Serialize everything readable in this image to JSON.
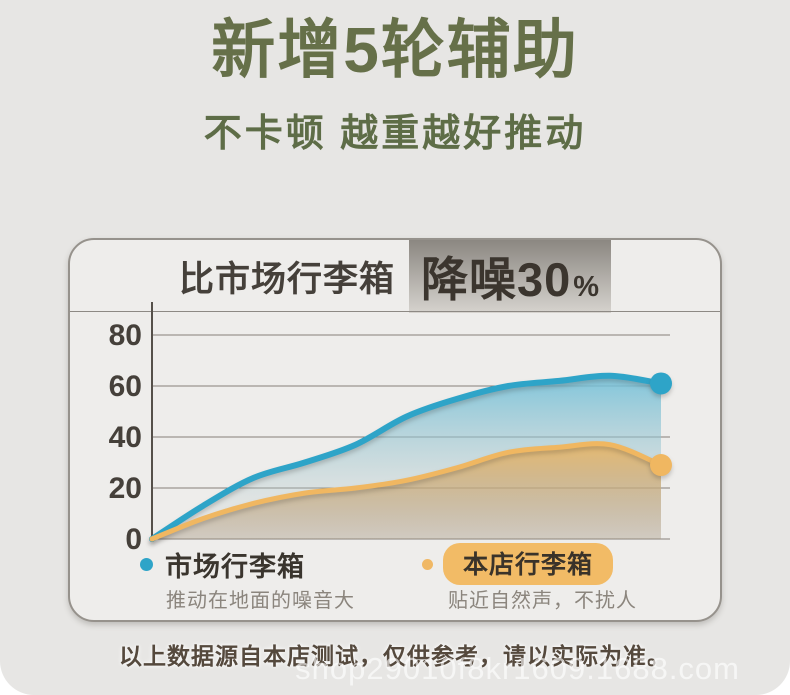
{
  "palette": {
    "page_bg": "#e7e6e4",
    "title_green": "#667049",
    "text_dark": "#45403a",
    "grid": "#6b665f",
    "caption_gray": "#8b857d",
    "blue": "#2ea4c8",
    "orange": "#f0b761",
    "badge_gradient_top": "#8b8781",
    "badge_gradient_bottom": "#d6d3ce"
  },
  "header": {
    "title": "新增5轮辅助",
    "subtitle": "不卡顿 越重越好推动"
  },
  "chart_card": {
    "heading_prefix": "比市场行李箱",
    "badge_value": "降噪30",
    "badge_unit": "%"
  },
  "chart_data": {
    "type": "area",
    "title": "比市场行李箱 降噪30%",
    "xlabel": "",
    "ylabel": "",
    "x": [
      0,
      1,
      2,
      3,
      4,
      5,
      6,
      7,
      8,
      9,
      10
    ],
    "series": [
      {
        "name": "市场行李箱",
        "color": "#2ea4c8",
        "fill_top": "#6fc0da",
        "values": [
          0,
          13,
          24,
          30,
          37,
          48,
          55,
          60,
          62,
          64,
          61
        ]
      },
      {
        "name": "本店行李箱",
        "color": "#f0b761",
        "fill_top": "#eeba68",
        "values": [
          0,
          8,
          14,
          18,
          20,
          23,
          28,
          34,
          36,
          37,
          29
        ]
      }
    ],
    "yticks": [
      0,
      20,
      40,
      60,
      80
    ],
    "ylim": [
      0,
      88
    ],
    "grid": true,
    "legend_position": "bottom"
  },
  "legend": {
    "market": {
      "label": "市场行李箱",
      "caption": "推动在地面的噪音大",
      "color": "#2ea4c8"
    },
    "store": {
      "label": "本店行李箱",
      "caption": "贴近自然声，不扰人",
      "color": "#f0b865"
    }
  },
  "footer": {
    "disclaimer": "以上数据源自本店测试，仅供参考，请以实际为准。"
  },
  "watermark": "shop29010f8kr1609.1688.com"
}
